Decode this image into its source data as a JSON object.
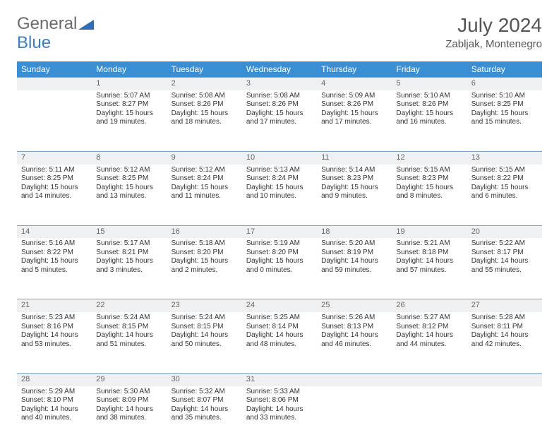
{
  "logo": {
    "text1": "General",
    "text2": "Blue"
  },
  "title": {
    "month": "July 2024",
    "location": "Zabljak, Montenegro"
  },
  "colors": {
    "header_bg": "#3a8fd4",
    "header_text": "#ffffff",
    "daynum_bg": "#eef0f2",
    "daynum_text": "#666666",
    "rule": "#7aa7cc",
    "body_text": "#333333",
    "logo_gray": "#6b6b6b",
    "logo_blue": "#3a7fc4"
  },
  "fonts": {
    "body_pt": 10,
    "daynum_pt": 11,
    "header_pt": 12,
    "title_pt": 28,
    "location_pt": 15
  },
  "day_names": [
    "Sunday",
    "Monday",
    "Tuesday",
    "Wednesday",
    "Thursday",
    "Friday",
    "Saturday"
  ],
  "weeks": [
    [
      null,
      {
        "n": "1",
        "sr": "Sunrise: 5:07 AM",
        "ss": "Sunset: 8:27 PM",
        "dl": "Daylight: 15 hours and 19 minutes."
      },
      {
        "n": "2",
        "sr": "Sunrise: 5:08 AM",
        "ss": "Sunset: 8:26 PM",
        "dl": "Daylight: 15 hours and 18 minutes."
      },
      {
        "n": "3",
        "sr": "Sunrise: 5:08 AM",
        "ss": "Sunset: 8:26 PM",
        "dl": "Daylight: 15 hours and 17 minutes."
      },
      {
        "n": "4",
        "sr": "Sunrise: 5:09 AM",
        "ss": "Sunset: 8:26 PM",
        "dl": "Daylight: 15 hours and 17 minutes."
      },
      {
        "n": "5",
        "sr": "Sunrise: 5:10 AM",
        "ss": "Sunset: 8:26 PM",
        "dl": "Daylight: 15 hours and 16 minutes."
      },
      {
        "n": "6",
        "sr": "Sunrise: 5:10 AM",
        "ss": "Sunset: 8:25 PM",
        "dl": "Daylight: 15 hours and 15 minutes."
      }
    ],
    [
      {
        "n": "7",
        "sr": "Sunrise: 5:11 AM",
        "ss": "Sunset: 8:25 PM",
        "dl": "Daylight: 15 hours and 14 minutes."
      },
      {
        "n": "8",
        "sr": "Sunrise: 5:12 AM",
        "ss": "Sunset: 8:25 PM",
        "dl": "Daylight: 15 hours and 13 minutes."
      },
      {
        "n": "9",
        "sr": "Sunrise: 5:12 AM",
        "ss": "Sunset: 8:24 PM",
        "dl": "Daylight: 15 hours and 11 minutes."
      },
      {
        "n": "10",
        "sr": "Sunrise: 5:13 AM",
        "ss": "Sunset: 8:24 PM",
        "dl": "Daylight: 15 hours and 10 minutes."
      },
      {
        "n": "11",
        "sr": "Sunrise: 5:14 AM",
        "ss": "Sunset: 8:23 PM",
        "dl": "Daylight: 15 hours and 9 minutes."
      },
      {
        "n": "12",
        "sr": "Sunrise: 5:15 AM",
        "ss": "Sunset: 8:23 PM",
        "dl": "Daylight: 15 hours and 8 minutes."
      },
      {
        "n": "13",
        "sr": "Sunrise: 5:15 AM",
        "ss": "Sunset: 8:22 PM",
        "dl": "Daylight: 15 hours and 6 minutes."
      }
    ],
    [
      {
        "n": "14",
        "sr": "Sunrise: 5:16 AM",
        "ss": "Sunset: 8:22 PM",
        "dl": "Daylight: 15 hours and 5 minutes."
      },
      {
        "n": "15",
        "sr": "Sunrise: 5:17 AM",
        "ss": "Sunset: 8:21 PM",
        "dl": "Daylight: 15 hours and 3 minutes."
      },
      {
        "n": "16",
        "sr": "Sunrise: 5:18 AM",
        "ss": "Sunset: 8:20 PM",
        "dl": "Daylight: 15 hours and 2 minutes."
      },
      {
        "n": "17",
        "sr": "Sunrise: 5:19 AM",
        "ss": "Sunset: 8:20 PM",
        "dl": "Daylight: 15 hours and 0 minutes."
      },
      {
        "n": "18",
        "sr": "Sunrise: 5:20 AM",
        "ss": "Sunset: 8:19 PM",
        "dl": "Daylight: 14 hours and 59 minutes."
      },
      {
        "n": "19",
        "sr": "Sunrise: 5:21 AM",
        "ss": "Sunset: 8:18 PM",
        "dl": "Daylight: 14 hours and 57 minutes."
      },
      {
        "n": "20",
        "sr": "Sunrise: 5:22 AM",
        "ss": "Sunset: 8:17 PM",
        "dl": "Daylight: 14 hours and 55 minutes."
      }
    ],
    [
      {
        "n": "21",
        "sr": "Sunrise: 5:23 AM",
        "ss": "Sunset: 8:16 PM",
        "dl": "Daylight: 14 hours and 53 minutes."
      },
      {
        "n": "22",
        "sr": "Sunrise: 5:24 AM",
        "ss": "Sunset: 8:15 PM",
        "dl": "Daylight: 14 hours and 51 minutes."
      },
      {
        "n": "23",
        "sr": "Sunrise: 5:24 AM",
        "ss": "Sunset: 8:15 PM",
        "dl": "Daylight: 14 hours and 50 minutes."
      },
      {
        "n": "24",
        "sr": "Sunrise: 5:25 AM",
        "ss": "Sunset: 8:14 PM",
        "dl": "Daylight: 14 hours and 48 minutes."
      },
      {
        "n": "25",
        "sr": "Sunrise: 5:26 AM",
        "ss": "Sunset: 8:13 PM",
        "dl": "Daylight: 14 hours and 46 minutes."
      },
      {
        "n": "26",
        "sr": "Sunrise: 5:27 AM",
        "ss": "Sunset: 8:12 PM",
        "dl": "Daylight: 14 hours and 44 minutes."
      },
      {
        "n": "27",
        "sr": "Sunrise: 5:28 AM",
        "ss": "Sunset: 8:11 PM",
        "dl": "Daylight: 14 hours and 42 minutes."
      }
    ],
    [
      {
        "n": "28",
        "sr": "Sunrise: 5:29 AM",
        "ss": "Sunset: 8:10 PM",
        "dl": "Daylight: 14 hours and 40 minutes."
      },
      {
        "n": "29",
        "sr": "Sunrise: 5:30 AM",
        "ss": "Sunset: 8:09 PM",
        "dl": "Daylight: 14 hours and 38 minutes."
      },
      {
        "n": "30",
        "sr": "Sunrise: 5:32 AM",
        "ss": "Sunset: 8:07 PM",
        "dl": "Daylight: 14 hours and 35 minutes."
      },
      {
        "n": "31",
        "sr": "Sunrise: 5:33 AM",
        "ss": "Sunset: 8:06 PM",
        "dl": "Daylight: 14 hours and 33 minutes."
      },
      null,
      null,
      null
    ]
  ]
}
